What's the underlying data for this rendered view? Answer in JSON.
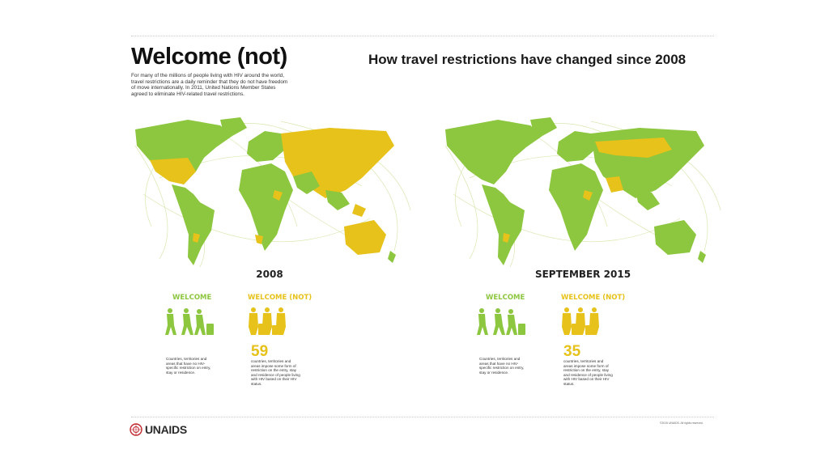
{
  "header": {
    "title": "Welcome (not)",
    "intro": "For many of the millions of people living with HIV around the world, travel restrictions are a daily reminder that they do not have freedom of move internationally. In 2011, United Nations Member States agreed to eliminate HIV-related travel restrictions.",
    "subtitle": "How travel restrictions have changed since 2008"
  },
  "colors": {
    "welcome": "#8dc63f",
    "restricted": "#e6c21a",
    "routes": "#d8e7b0"
  },
  "panels": [
    {
      "year": "2008",
      "welcome_label": "WELCOME",
      "restricted_label": "WELCOME (NOT)",
      "welcome_desc": "Countries, territories and areas that have no HIV-specific restriction on entry, stay or residence.",
      "restricted_count": "59",
      "restricted_desc": "countries, territories and areas impose some form of restriction on the entry, stay and residence of people living with HIV based on their HIV status."
    },
    {
      "year": "SEPTEMBER 2015",
      "welcome_label": "WELCOME",
      "restricted_label": "WELCOME (NOT)",
      "welcome_desc": "Countries, territories and areas that have no HIV-specific restriction on entry, stay or residence.",
      "restricted_count": "35",
      "restricted_desc": "countries, territories and areas impose some form of restriction on the entry, stay and residence of people living with HIV based on their HIV status."
    }
  ],
  "footer": {
    "logo_text": "UNAIDS",
    "copyright": "©2015 UNAIDS. All rights reserved."
  }
}
